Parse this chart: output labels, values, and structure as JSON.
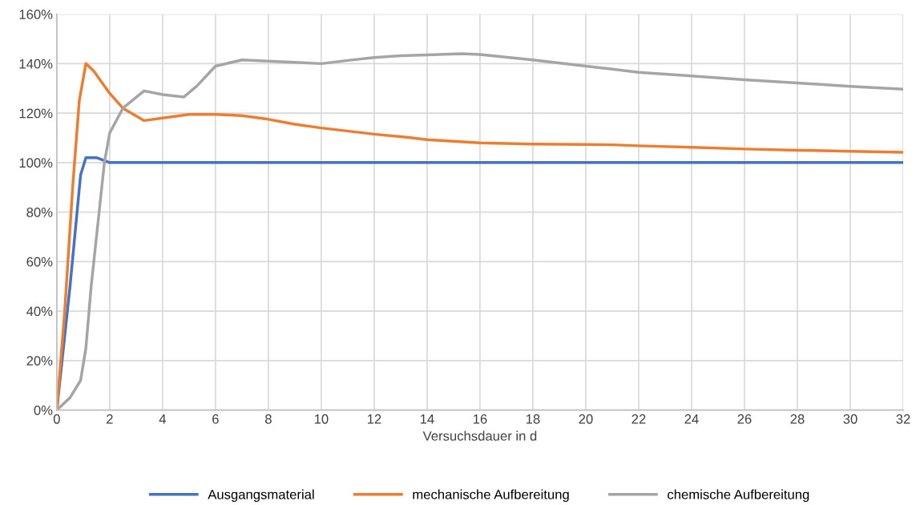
{
  "chart_data": {
    "type": "line",
    "xlabel": "Versuchsdauer in d",
    "xlim": [
      0,
      32
    ],
    "xticks": [
      0,
      2,
      4,
      6,
      8,
      10,
      12,
      14,
      16,
      18,
      20,
      22,
      24,
      26,
      28,
      30,
      32
    ],
    "ylim": [
      0,
      160
    ],
    "yticks": [
      {
        "value": 0,
        "label": "0%"
      },
      {
        "value": 20,
        "label": "20%"
      },
      {
        "value": 40,
        "label": "40%"
      },
      {
        "value": 60,
        "label": "60%"
      },
      {
        "value": 80,
        "label": "80%"
      },
      {
        "value": 100,
        "label": "100%"
      },
      {
        "value": 120,
        "label": "120%"
      },
      {
        "value": 140,
        "label": "140%"
      },
      {
        "value": 160,
        "label": "160%"
      }
    ],
    "grid": true,
    "legend": "bottom",
    "marker": "none",
    "line_style": "solid",
    "series": [
      {
        "name": "Ausgangsmaterial",
        "color": "#4472c4",
        "x": [
          0,
          0.5,
          0.9,
          1.1,
          1.5,
          2,
          32
        ],
        "values": [
          0,
          50,
          95,
          102,
          102,
          100,
          100
        ]
      },
      {
        "name": "mechanische Aufbereitung",
        "color": "#ed7d31",
        "x": [
          0,
          0.3,
          0.6,
          0.85,
          1.1,
          1.4,
          2,
          2.5,
          3.3,
          4,
          5,
          6,
          7,
          8,
          9,
          10,
          12,
          13,
          14,
          16,
          18,
          20,
          21,
          22,
          24,
          26,
          28,
          30,
          32
        ],
        "values": [
          0,
          40,
          90,
          125,
          140,
          137,
          128,
          122,
          117,
          118,
          119.5,
          119.5,
          119,
          117.5,
          115.5,
          114,
          111.5,
          110.5,
          109.3,
          108,
          107.5,
          107.3,
          107.2,
          106.8,
          106.2,
          105.5,
          105,
          104.6,
          104.2
        ]
      },
      {
        "name": "chemische Aufbereitung",
        "color": "#a5a5a5",
        "x": [
          0,
          0.5,
          0.9,
          1.1,
          1.3,
          1.6,
          1.8,
          2,
          2.5,
          3.3,
          4,
          4.8,
          5.3,
          6,
          7,
          8,
          9,
          10,
          11,
          12,
          13,
          14,
          15.3,
          16,
          18,
          20,
          22,
          24,
          26,
          28,
          30,
          32
        ],
        "values": [
          0,
          5,
          12,
          25,
          50,
          80,
          100,
          112,
          122,
          129,
          127.5,
          126.5,
          131,
          139,
          141.5,
          141,
          140.5,
          140,
          141.3,
          142.5,
          143.2,
          143.5,
          144,
          143.7,
          141.5,
          139,
          136.5,
          135,
          133.5,
          132.2,
          130.8,
          129.7
        ]
      }
    ]
  }
}
